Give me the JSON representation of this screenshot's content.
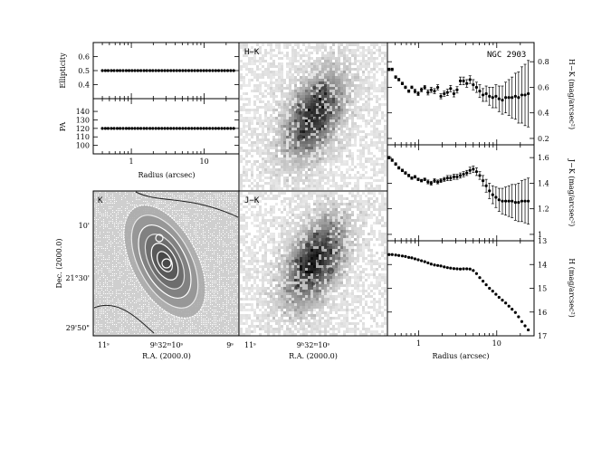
{
  "chart_data": [
    {
      "id": "ellipticity",
      "type": "scatter",
      "ylabel": "Ellipticity",
      "xscale": "log",
      "xlim": [
        0.3,
        30
      ],
      "ylim": [
        0.3,
        0.7
      ],
      "yticks": [
        "0.4",
        "0.5",
        "0.6"
      ],
      "x": [
        0.4,
        0.44,
        0.48,
        0.53,
        0.58,
        0.64,
        0.7,
        0.77,
        0.85,
        0.93,
        1.02,
        1.12,
        1.23,
        1.35,
        1.49,
        1.63,
        1.8,
        1.97,
        2.17,
        2.38,
        2.62,
        2.88,
        3.16,
        3.48,
        3.82,
        4.2,
        4.62,
        5.08,
        5.58,
        6.14,
        6.75,
        7.42,
        8.16,
        8.97,
        9.86,
        10.8,
        11.9,
        13.1,
        14.4,
        15.8,
        17.4,
        19.1,
        21.0,
        23.1,
        25.4
      ],
      "y": [
        0.5,
        0.5,
        0.5,
        0.5,
        0.5,
        0.5,
        0.5,
        0.5,
        0.5,
        0.5,
        0.5,
        0.5,
        0.5,
        0.5,
        0.5,
        0.5,
        0.5,
        0.5,
        0.5,
        0.5,
        0.5,
        0.5,
        0.5,
        0.5,
        0.5,
        0.5,
        0.5,
        0.5,
        0.5,
        0.5,
        0.5,
        0.5,
        0.5,
        0.5,
        0.5,
        0.5,
        0.5,
        0.5,
        0.5,
        0.5,
        0.5,
        0.5,
        0.5,
        0.5,
        0.5
      ]
    },
    {
      "id": "pa",
      "type": "scatter",
      "ylabel": "PA",
      "xlabel": "Radius (arcsec)",
      "xscale": "log",
      "xlim": [
        0.3,
        30
      ],
      "ylim": [
        90,
        155
      ],
      "yticks": [
        "100",
        "110",
        "120",
        "130",
        "140"
      ],
      "xticks": [
        "1",
        "10"
      ],
      "x": [
        0.4,
        0.44,
        0.48,
        0.53,
        0.58,
        0.64,
        0.7,
        0.77,
        0.85,
        0.93,
        1.02,
        1.12,
        1.23,
        1.35,
        1.49,
        1.63,
        1.8,
        1.97,
        2.17,
        2.38,
        2.62,
        2.88,
        3.16,
        3.48,
        3.82,
        4.2,
        4.62,
        5.08,
        5.58,
        6.14,
        6.75,
        7.42,
        8.16,
        8.97,
        9.86,
        10.8,
        11.9,
        13.1,
        14.4,
        15.8,
        17.4,
        19.1,
        21.0,
        23.1,
        25.4
      ],
      "y": [
        120,
        120,
        120,
        120,
        120,
        120,
        120,
        120,
        120,
        120,
        120,
        120,
        120,
        120,
        120,
        120,
        120,
        120,
        120,
        120,
        120,
        120,
        120,
        120,
        120,
        120,
        120,
        120,
        120,
        120,
        120,
        120,
        120,
        120,
        120,
        120,
        120,
        120,
        120,
        120,
        120,
        120,
        120,
        120,
        120
      ]
    },
    {
      "id": "h-k-profile",
      "type": "scatter",
      "title": "NGC 2903",
      "ylabel": "H−K (mag/arcsec²)",
      "xscale": "log",
      "xlim": [
        0.4,
        30
      ],
      "ylim": [
        0.15,
        0.95
      ],
      "yticks": [
        "0.2",
        "0.4",
        "0.6",
        "0.8"
      ],
      "x": [
        0.42,
        0.46,
        0.51,
        0.56,
        0.62,
        0.68,
        0.75,
        0.82,
        0.9,
        0.99,
        1.09,
        1.2,
        1.32,
        1.45,
        1.6,
        1.76,
        1.93,
        2.13,
        2.34,
        2.57,
        2.83,
        3.11,
        3.42,
        3.76,
        4.14,
        4.55,
        5.01,
        5.51,
        6.06,
        6.67,
        7.33,
        8.07,
        8.87,
        9.76,
        10.7,
        11.8,
        13.0,
        14.3,
        15.7,
        17.3,
        19.0,
        20.9,
        23.0,
        25.3
      ],
      "y": [
        0.74,
        0.74,
        0.68,
        0.66,
        0.63,
        0.6,
        0.57,
        0.6,
        0.57,
        0.55,
        0.58,
        0.6,
        0.56,
        0.58,
        0.57,
        0.6,
        0.53,
        0.55,
        0.56,
        0.59,
        0.55,
        0.58,
        0.65,
        0.65,
        0.63,
        0.66,
        0.62,
        0.6,
        0.57,
        0.54,
        0.55,
        0.53,
        0.52,
        0.53,
        0.51,
        0.5,
        0.52,
        0.52,
        0.52,
        0.53,
        0.52,
        0.54,
        0.54,
        0.55
      ],
      "err": [
        0.01,
        0.01,
        0.01,
        0.01,
        0.01,
        0.01,
        0.01,
        0.01,
        0.015,
        0.015,
        0.015,
        0.015,
        0.02,
        0.02,
        0.02,
        0.02,
        0.02,
        0.02,
        0.025,
        0.025,
        0.025,
        0.025,
        0.03,
        0.03,
        0.03,
        0.03,
        0.04,
        0.04,
        0.05,
        0.05,
        0.06,
        0.07,
        0.08,
        0.09,
        0.1,
        0.11,
        0.12,
        0.14,
        0.16,
        0.18,
        0.2,
        0.22,
        0.24,
        0.26
      ]
    },
    {
      "id": "j-k-profile",
      "type": "scatter",
      "ylabel": "J−K (mag/arcsec²)",
      "xscale": "log",
      "xlim": [
        0.4,
        30
      ],
      "ylim": [
        0.95,
        1.7
      ],
      "yticks": [
        "1",
        "1.2",
        "1.4",
        "1.6"
      ],
      "x": [
        0.42,
        0.46,
        0.51,
        0.56,
        0.62,
        0.68,
        0.75,
        0.82,
        0.9,
        0.99,
        1.09,
        1.2,
        1.32,
        1.45,
        1.6,
        1.76,
        1.93,
        2.13,
        2.34,
        2.57,
        2.83,
        3.11,
        3.42,
        3.76,
        4.14,
        4.55,
        5.01,
        5.51,
        6.06,
        6.67,
        7.33,
        8.07,
        8.87,
        9.76,
        10.7,
        11.8,
        13.0,
        14.3,
        15.7,
        17.3,
        19.0,
        20.9,
        23.0,
        25.3
      ],
      "y": [
        1.6,
        1.58,
        1.55,
        1.52,
        1.5,
        1.48,
        1.46,
        1.44,
        1.45,
        1.43,
        1.42,
        1.43,
        1.41,
        1.4,
        1.42,
        1.41,
        1.42,
        1.43,
        1.44,
        1.44,
        1.45,
        1.45,
        1.46,
        1.47,
        1.48,
        1.5,
        1.51,
        1.49,
        1.46,
        1.42,
        1.38,
        1.34,
        1.31,
        1.29,
        1.27,
        1.26,
        1.26,
        1.26,
        1.26,
        1.25,
        1.25,
        1.26,
        1.26,
        1.26
      ],
      "err": [
        0.01,
        0.01,
        0.01,
        0.01,
        0.01,
        0.01,
        0.01,
        0.01,
        0.01,
        0.01,
        0.01,
        0.01,
        0.015,
        0.015,
        0.015,
        0.015,
        0.015,
        0.015,
        0.02,
        0.02,
        0.02,
        0.02,
        0.02,
        0.02,
        0.02,
        0.025,
        0.025,
        0.03,
        0.03,
        0.04,
        0.05,
        0.06,
        0.07,
        0.08,
        0.09,
        0.1,
        0.11,
        0.12,
        0.13,
        0.14,
        0.15,
        0.16,
        0.17,
        0.18
      ]
    },
    {
      "id": "h-profile",
      "type": "scatter",
      "ylabel": "H (mag/arcsec²)",
      "xlabel": "Radius (arcsec)",
      "xscale": "log",
      "xlim": [
        0.4,
        30
      ],
      "ylim": [
        17,
        13
      ],
      "yticks": [
        "13",
        "14",
        "15",
        "16",
        "17"
      ],
      "xticks": [
        "1",
        "10"
      ],
      "x": [
        0.42,
        0.46,
        0.51,
        0.56,
        0.62,
        0.68,
        0.75,
        0.82,
        0.9,
        0.99,
        1.09,
        1.2,
        1.32,
        1.45,
        1.6,
        1.76,
        1.93,
        2.13,
        2.34,
        2.57,
        2.83,
        3.11,
        3.42,
        3.76,
        4.14,
        4.55,
        5.01,
        5.51,
        6.06,
        6.67,
        7.33,
        8.07,
        8.87,
        9.76,
        10.7,
        11.8,
        13.0,
        14.3,
        15.7,
        17.3,
        19.0,
        20.9,
        23.0,
        25.3
      ],
      "y": [
        13.58,
        13.58,
        13.6,
        13.62,
        13.64,
        13.66,
        13.7,
        13.72,
        13.76,
        13.8,
        13.84,
        13.88,
        13.93,
        13.98,
        14.02,
        14.04,
        14.06,
        14.1,
        14.13,
        14.15,
        14.17,
        14.18,
        14.19,
        14.18,
        14.18,
        14.19,
        14.25,
        14.38,
        14.55,
        14.7,
        14.85,
        15.0,
        15.12,
        15.25,
        15.38,
        15.5,
        15.62,
        15.75,
        15.88,
        16.02,
        16.2,
        16.4,
        16.58,
        16.75
      ]
    }
  ],
  "images": {
    "hk_label": "H−K",
    "k_label": "K",
    "jk_label": "J−K",
    "dec_label": "Dec. (2000.0)",
    "ra_label_1": "R.A. (2000.0)",
    "ra_label_2": "R.A. (2000.0)",
    "dec_ticks": [
      "10'",
      "21°30'",
      "29'50\""
    ],
    "ra_ticks_1": [
      "11ˢ",
      "9ʰ32ᵐ10ˢ",
      "9ˢ"
    ],
    "ra_ticks_2": [
      "11ˢ",
      "9ʰ32ᵐ10ˢ"
    ]
  }
}
